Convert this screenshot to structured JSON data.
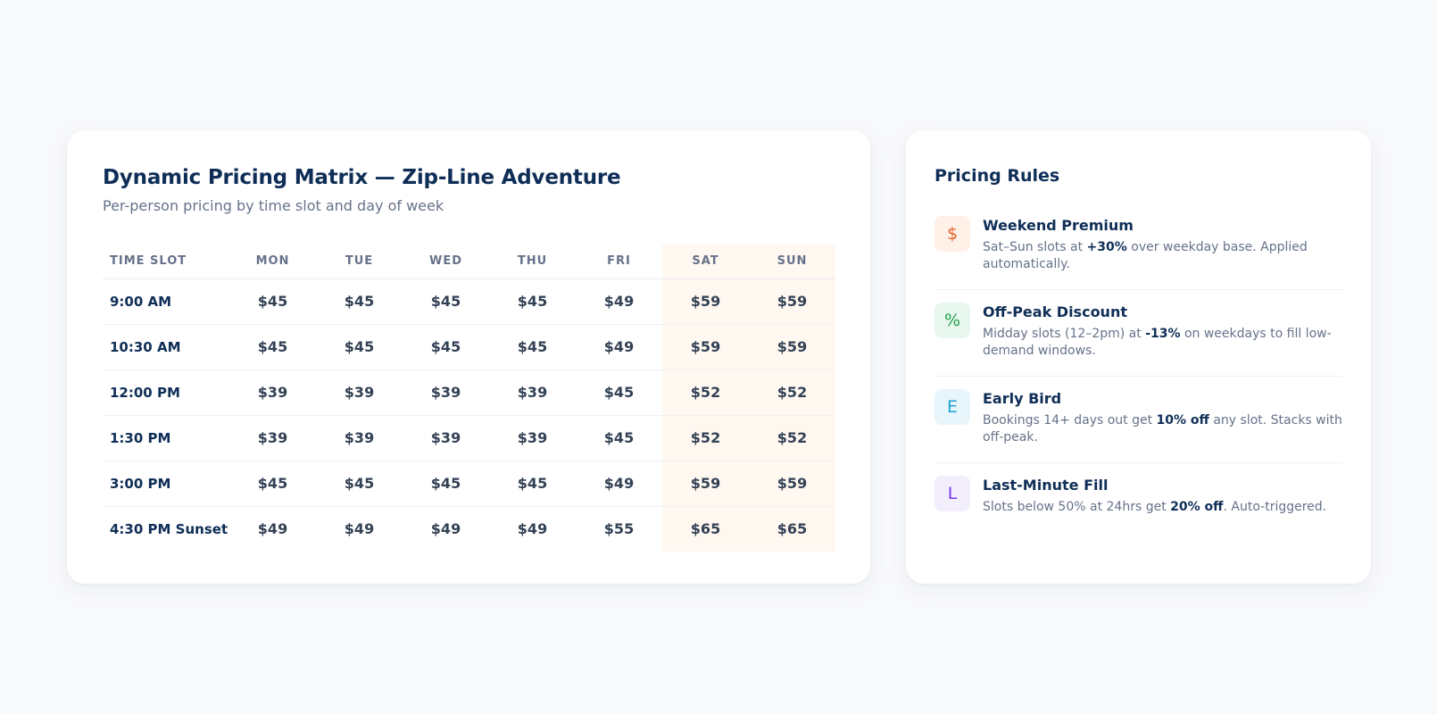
{
  "matrix": {
    "title": "Dynamic Pricing Matrix — Zip-Line Adventure",
    "subtitle": "Per-person pricing by time slot and day of week",
    "columns": [
      "TIME SLOT",
      "MON",
      "TUE",
      "WED",
      "THU",
      "FRI",
      "SAT",
      "SUN"
    ],
    "weekend_columns": [
      "SAT",
      "SUN"
    ],
    "rows": [
      {
        "slot": "9:00 AM",
        "prices": [
          "$45",
          "$45",
          "$45",
          "$45",
          "$49",
          "$59",
          "$59"
        ],
        "tiers": [
          "base",
          "base",
          "base",
          "base",
          "premium",
          "premium",
          "premium"
        ]
      },
      {
        "slot": "10:30 AM",
        "prices": [
          "$45",
          "$45",
          "$45",
          "$45",
          "$49",
          "$59",
          "$59"
        ],
        "tiers": [
          "base",
          "base",
          "base",
          "base",
          "premium",
          "premium",
          "premium"
        ]
      },
      {
        "slot": "12:00 PM",
        "prices": [
          "$39",
          "$39",
          "$39",
          "$39",
          "$45",
          "$52",
          "$52"
        ],
        "tiers": [
          "discount",
          "discount",
          "discount",
          "discount",
          "base",
          "premium",
          "premium"
        ]
      },
      {
        "slot": "1:30 PM",
        "prices": [
          "$39",
          "$39",
          "$39",
          "$39",
          "$45",
          "$52",
          "$52"
        ],
        "tiers": [
          "discount",
          "discount",
          "discount",
          "discount",
          "base",
          "premium",
          "premium"
        ]
      },
      {
        "slot": "3:00 PM",
        "prices": [
          "$45",
          "$45",
          "$45",
          "$45",
          "$49",
          "$59",
          "$59"
        ],
        "tiers": [
          "base",
          "base",
          "base",
          "base",
          "premium",
          "premium",
          "premium"
        ]
      },
      {
        "slot": "4:30 PM Sunset",
        "prices": [
          "$49",
          "$49",
          "$49",
          "$49",
          "$55",
          "$65",
          "$65"
        ],
        "tiers": [
          "premium",
          "premium",
          "premium",
          "premium",
          "premium",
          "premium",
          "premium"
        ]
      }
    ]
  },
  "rules": {
    "title": "Pricing Rules",
    "items": [
      {
        "icon": "$",
        "icon_name": "dollar-icon",
        "name": "Weekend Premium",
        "bg": "#fff1e8",
        "fg": "#ea6228",
        "desc": [
          {
            "t": "Sat–Sun slots at "
          },
          {
            "t": "+30%",
            "b": true
          },
          {
            "t": " over weekday base. Applied automatically."
          }
        ]
      },
      {
        "icon": "%",
        "icon_name": "percent-icon",
        "name": "Off-Peak Discount",
        "bg": "#e9f8ee",
        "fg": "#1f9d4c",
        "desc": [
          {
            "t": "Midday slots (12–2pm) at "
          },
          {
            "t": "-13%",
            "b": true
          },
          {
            "t": " on weekdays to fill low-demand windows."
          }
        ]
      },
      {
        "icon": "E",
        "icon_name": "early-bird-icon",
        "name": "Early Bird",
        "bg": "#e8f6fc",
        "fg": "#1aa3d6",
        "desc": [
          {
            "t": "Bookings 14+ days out get "
          },
          {
            "t": "10% off",
            "b": true
          },
          {
            "t": " any slot. Stacks with off-peak."
          }
        ]
      },
      {
        "icon": "L",
        "icon_name": "last-minute-icon",
        "name": "Last-Minute Fill",
        "bg": "#f3eefc",
        "fg": "#7c3aed",
        "desc": [
          {
            "t": "Slots below 50% at 24hrs get "
          },
          {
            "t": "20% off",
            "b": true
          },
          {
            "t": ". Auto-triggered."
          }
        ]
      }
    ]
  },
  "colors": {
    "base": "#334155",
    "discount": "#1f9d4c",
    "premium": "#ea6228",
    "weekend_bg": "#fff8f0",
    "title": "#0f2e57"
  }
}
